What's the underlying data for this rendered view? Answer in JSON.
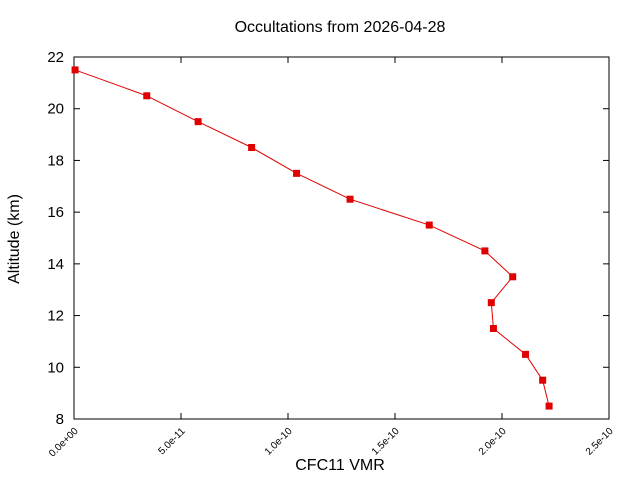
{
  "chart_data": {
    "type": "line",
    "title": "Occultations from 2026-04-28",
    "xlabel": "CFC11 VMR",
    "ylabel": "Altitude (km)",
    "xlim": [
      0,
      2.5e-10
    ],
    "ylim": [
      8,
      22
    ],
    "x_ticks": [
      0,
      5e-11,
      1e-10,
      1.5e-10,
      2e-10,
      2.5e-10
    ],
    "x_tick_labels": [
      "0.0e+00",
      "5.0e-11",
      "1.0e-10",
      "1.5e-10",
      "2.0e-10",
      "2.5e-10"
    ],
    "y_ticks": [
      8,
      10,
      12,
      14,
      16,
      18,
      20,
      22
    ],
    "y_tick_labels": [
      "8",
      "10",
      "12",
      "14",
      "16",
      "18",
      "20",
      "22"
    ],
    "grid": false,
    "legend": "none",
    "series": [
      {
        "color": "#e00000",
        "marker": "square",
        "points": [
          {
            "x": 5e-13,
            "y": 21.5
          },
          {
            "x": 3.4e-11,
            "y": 20.5
          },
          {
            "x": 5.8e-11,
            "y": 19.5
          },
          {
            "x": 8.3e-11,
            "y": 18.5
          },
          {
            "x": 1.04e-10,
            "y": 17.5
          },
          {
            "x": 1.29e-10,
            "y": 16.5
          },
          {
            "x": 1.66e-10,
            "y": 15.5
          },
          {
            "x": 1.92e-10,
            "y": 14.5
          },
          {
            "x": 2.05e-10,
            "y": 13.5
          },
          {
            "x": 1.95e-10,
            "y": 12.5
          },
          {
            "x": 1.96e-10,
            "y": 11.5
          },
          {
            "x": 2.11e-10,
            "y": 10.5
          },
          {
            "x": 2.19e-10,
            "y": 9.5
          },
          {
            "x": 2.22e-10,
            "y": 8.5
          }
        ]
      }
    ]
  }
}
